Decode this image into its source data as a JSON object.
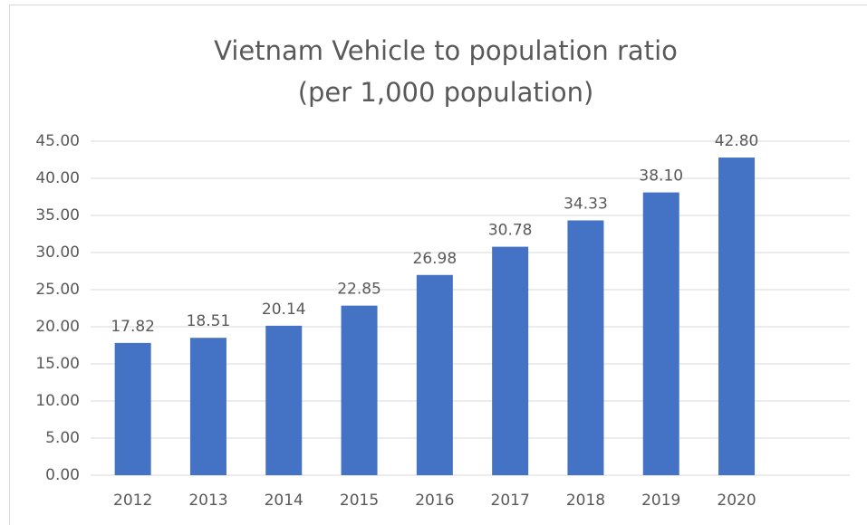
{
  "chart_data": {
    "type": "bar",
    "title": "Vietnam Vehicle to population ratio",
    "subtitle": "(per 1,000 population)",
    "categories": [
      "2012",
      "2013",
      "2014",
      "2015",
      "2016",
      "2017",
      "2018",
      "2019",
      "2020",
      null
    ],
    "values": [
      17.82,
      18.51,
      20.14,
      22.85,
      26.98,
      30.78,
      34.33,
      38.1,
      42.8,
      null
    ],
    "value_labels": [
      "17.82",
      "18.51",
      "20.14",
      "22.85",
      "26.98",
      "30.78",
      "34.33",
      "38.10",
      "42.80",
      null
    ],
    "color": "#4472c4",
    "ylim": [
      0,
      45
    ],
    "yticks": [
      {
        "value": 0,
        "label": "0.00"
      },
      {
        "value": 5,
        "label": "5.00"
      },
      {
        "value": 10,
        "label": "10.00"
      },
      {
        "value": 15,
        "label": "15.00"
      },
      {
        "value": 20,
        "label": "20.00"
      },
      {
        "value": 25,
        "label": "25.00"
      },
      {
        "value": 30,
        "label": "30.00"
      },
      {
        "value": 35,
        "label": "35.00"
      },
      {
        "value": 40,
        "label": "40.00"
      },
      {
        "value": 45,
        "label": "45.00"
      }
    ],
    "grid": true
  }
}
